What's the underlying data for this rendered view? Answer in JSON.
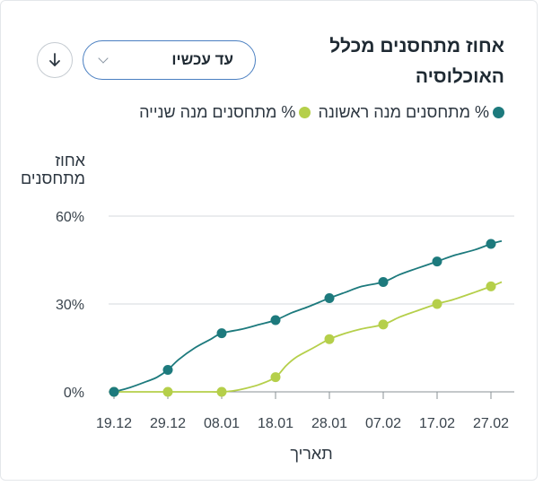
{
  "header": {
    "title": "אחוז מתחסנים מכלל האוכלוסיה",
    "period_select": {
      "value": "עד עכשיו",
      "icon": "chevron-down-icon"
    },
    "download_icon": "arrow-down-icon"
  },
  "colors": {
    "first_dose": "#1d7a7d",
    "second_dose": "#b5cf4a",
    "grid": "#d4d8dc",
    "axis": "#8a9096"
  },
  "chart_data": {
    "type": "line",
    "ylabel": "אחוז מתחסנים",
    "xlabel": "תאריך",
    "ylim": [
      0,
      60
    ],
    "y_ticks": [
      "0%",
      "30%",
      "60%"
    ],
    "y_tick_values": [
      0,
      30,
      60
    ],
    "x_tick_labels": [
      "19.12",
      "29.12",
      "08.01",
      "18.01",
      "28.01",
      "07.02",
      "17.02",
      "27.02"
    ],
    "legend_position": "top",
    "series": [
      {
        "name": "% מתחסנים מנה ראשונה",
        "color": "#1d7a7d",
        "x": [
          "19.12",
          "22.12",
          "25.12",
          "27.12",
          "29.12",
          "31.12",
          "03.01",
          "06.01",
          "08.01",
          "12.01",
          "15.01",
          "18.01",
          "21.01",
          "24.01",
          "28.01",
          "31.01",
          "03.02",
          "07.02",
          "10.02",
          "13.02",
          "17.02",
          "20.02",
          "24.02",
          "27.02",
          "01.03"
        ],
        "values": [
          0,
          1.5,
          3.5,
          5,
          7.5,
          11,
          15,
          18,
          20,
          21.5,
          23,
          24.5,
          27,
          29,
          32,
          34,
          36,
          37.5,
          40,
          42,
          44.5,
          46.5,
          48.5,
          50.5,
          51.5
        ],
        "markers": [
          0,
          7.5,
          20,
          24.5,
          32,
          37.5,
          44.5,
          50.5
        ]
      },
      {
        "name": "% מתחסנים מנה שנייה",
        "color": "#b5cf4a",
        "x": [
          "19.12",
          "22.12",
          "25.12",
          "27.12",
          "29.12",
          "31.12",
          "03.01",
          "06.01",
          "08.01",
          "10.01",
          "12.01",
          "15.01",
          "18.01",
          "20.01",
          "22.01",
          "25.01",
          "28.01",
          "31.01",
          "03.02",
          "07.02",
          "10.02",
          "13.02",
          "17.02",
          "20.02",
          "24.02",
          "27.02",
          "01.03"
        ],
        "values": [
          0,
          0,
          0,
          0,
          0,
          0,
          0,
          0,
          0,
          0.3,
          1,
          2.5,
          5,
          9,
          12,
          15,
          18,
          20,
          21.5,
          23,
          25.5,
          27.5,
          30,
          31.5,
          34,
          36,
          37.5
        ],
        "markers": [
          0,
          0,
          0,
          5,
          18,
          23,
          30,
          36
        ]
      }
    ]
  }
}
